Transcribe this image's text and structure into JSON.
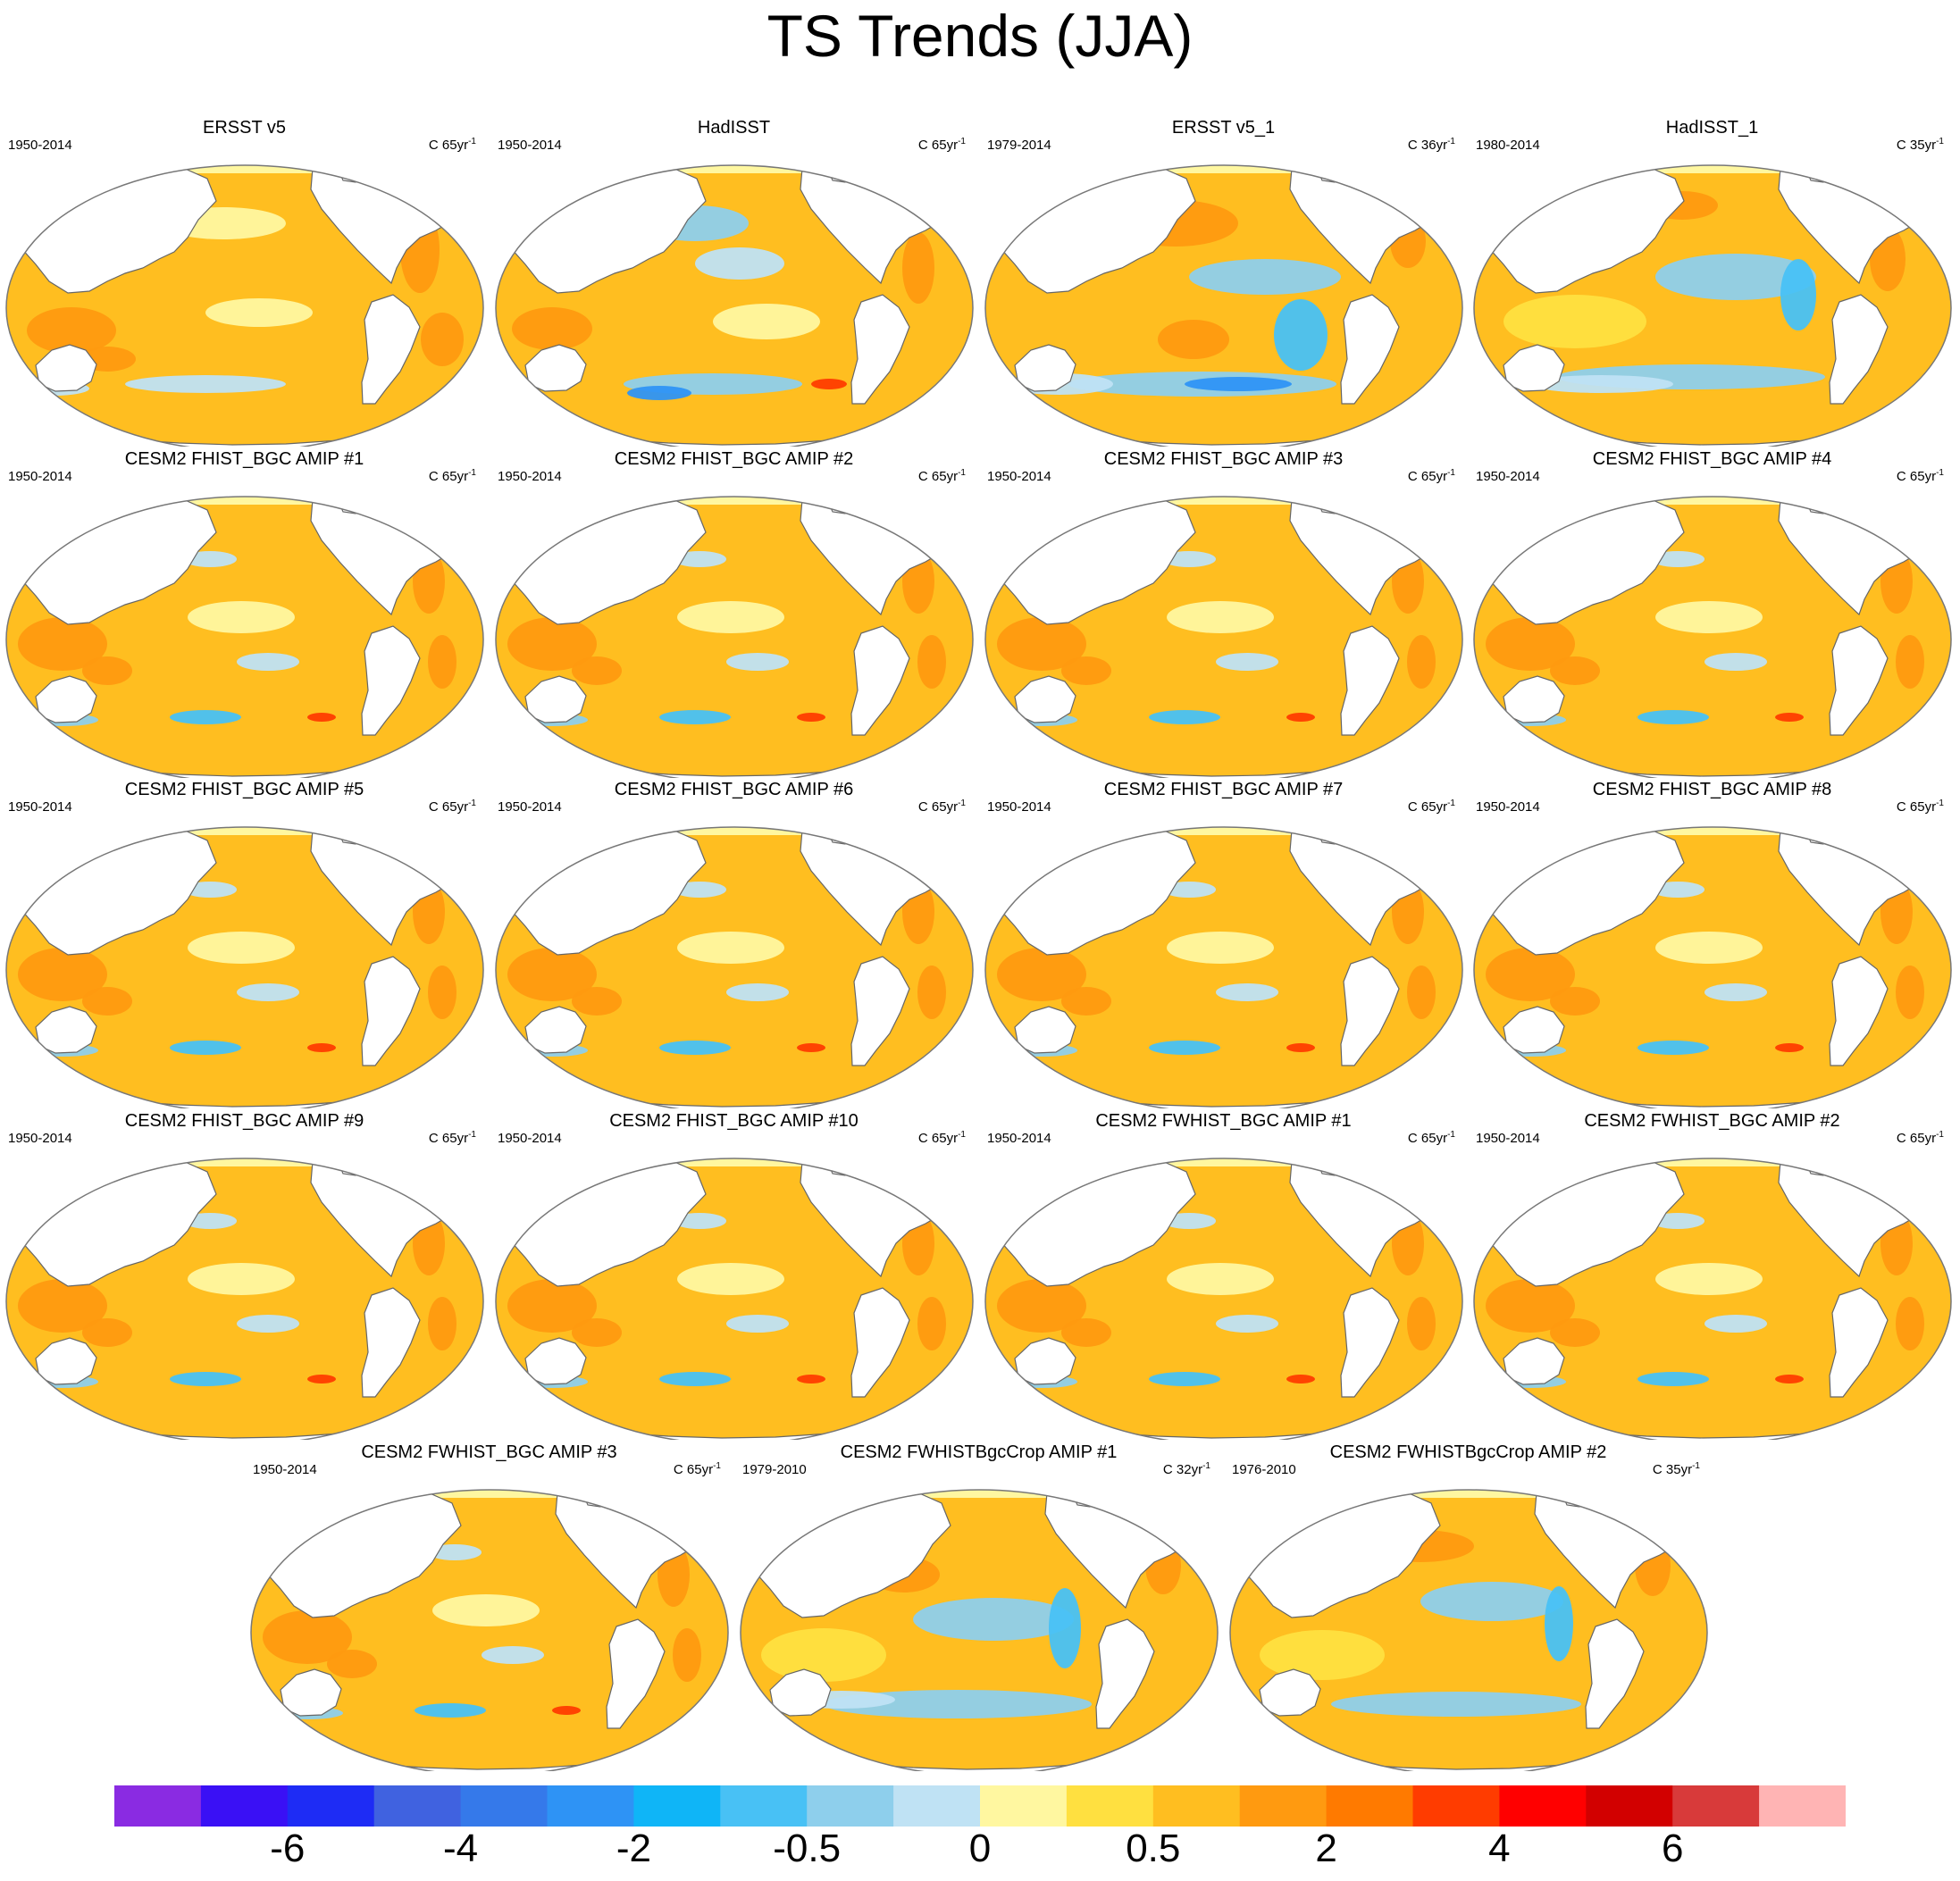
{
  "title": "TS Trends (JJA)",
  "panels": [
    {
      "name": "ERSST v5",
      "period": "1950-2014",
      "units": "C 65yr",
      "units_sup": "-1",
      "pattern": "obs-long"
    },
    {
      "name": "HadISST",
      "period": "1950-2014",
      "units": "C 65yr",
      "units_sup": "-1",
      "pattern": "obs-long-had"
    },
    {
      "name": "ERSST v5_1",
      "period": "1979-2014",
      "units": "C 36yr",
      "units_sup": "-1",
      "pattern": "obs-short"
    },
    {
      "name": "HadISST_1",
      "period": "1980-2014",
      "units": "C 35yr",
      "units_sup": "-1",
      "pattern": "obs-short-had"
    },
    {
      "name": "CESM2 FHIST_BGC AMIP #1",
      "period": "1950-2014",
      "units": "C 65yr",
      "units_sup": "-1",
      "pattern": "amip"
    },
    {
      "name": "CESM2 FHIST_BGC AMIP #2",
      "period": "1950-2014",
      "units": "C 65yr",
      "units_sup": "-1",
      "pattern": "amip"
    },
    {
      "name": "CESM2 FHIST_BGC AMIP #3",
      "period": "1950-2014",
      "units": "C 65yr",
      "units_sup": "-1",
      "pattern": "amip"
    },
    {
      "name": "CESM2 FHIST_BGC AMIP #4",
      "period": "1950-2014",
      "units": "C 65yr",
      "units_sup": "-1",
      "pattern": "amip"
    },
    {
      "name": "CESM2 FHIST_BGC AMIP #5",
      "period": "1950-2014",
      "units": "C 65yr",
      "units_sup": "-1",
      "pattern": "amip"
    },
    {
      "name": "CESM2 FHIST_BGC AMIP #6",
      "period": "1950-2014",
      "units": "C 65yr",
      "units_sup": "-1",
      "pattern": "amip"
    },
    {
      "name": "CESM2 FHIST_BGC AMIP #7",
      "period": "1950-2014",
      "units": "C 65yr",
      "units_sup": "-1",
      "pattern": "amip"
    },
    {
      "name": "CESM2 FHIST_BGC AMIP #8",
      "period": "1950-2014",
      "units": "C 65yr",
      "units_sup": "-1",
      "pattern": "amip"
    },
    {
      "name": "CESM2 FHIST_BGC AMIP #9",
      "period": "1950-2014",
      "units": "C 65yr",
      "units_sup": "-1",
      "pattern": "amip"
    },
    {
      "name": "CESM2 FHIST_BGC AMIP #10",
      "period": "1950-2014",
      "units": "C 65yr",
      "units_sup": "-1",
      "pattern": "amip"
    },
    {
      "name": "CESM2 FWHIST_BGC AMIP #1",
      "period": "1950-2014",
      "units": "C 65yr",
      "units_sup": "-1",
      "pattern": "amip"
    },
    {
      "name": "CESM2 FWHIST_BGC AMIP #2",
      "period": "1950-2014",
      "units": "C 65yr",
      "units_sup": "-1",
      "pattern": "amip"
    },
    {
      "name": "CESM2 FWHIST_BGC AMIP #3",
      "period": "1950-2014",
      "units": "C 65yr",
      "units_sup": "-1",
      "pattern": "amip"
    },
    {
      "name": "CESM2 FWHISTBgcCrop AMIP #1",
      "period": "1979-2010",
      "units": "C 32yr",
      "units_sup": "-1",
      "pattern": "crop-short"
    },
    {
      "name": "CESM2 FWHISTBgcCrop AMIP #2",
      "period": "1976-2010",
      "units": "C 35yr",
      "units_sup": "-1",
      "pattern": "crop-short2"
    }
  ],
  "colorbar": {
    "colors": [
      "#8a2be2",
      "#3a10f5",
      "#1e2cf5",
      "#4062e0",
      "#3579ea",
      "#2e93f5",
      "#0fb5f7",
      "#48c1f5",
      "#8ecfec",
      "#bfe2f4",
      "#fff7a0",
      "#ffe040",
      "#ffbe20",
      "#ff9a10",
      "#ff7a00",
      "#ff3c00",
      "#ff0000",
      "#d20000",
      "#d83a3a",
      "#ffb4b4"
    ],
    "labels": [
      "-6",
      "-4",
      "-2",
      "-0.5",
      "0",
      "0.5",
      "2",
      "4",
      "6"
    ],
    "label_levels": [
      2,
      4,
      6,
      8,
      10,
      12,
      14,
      16,
      18
    ]
  },
  "palette": {
    "land": "#ffffff",
    "coast": "#666666",
    "weak_warm": "#fff7a0",
    "warm": "#ffe040",
    "warmer": "#ffbe20",
    "strong_warm": "#ff9a10",
    "hot": "#ff3c00",
    "weak_cool": "#bfe2f4",
    "cool": "#8ecfec",
    "cooler": "#48c1f5",
    "strong_cool": "#2e93f5"
  }
}
